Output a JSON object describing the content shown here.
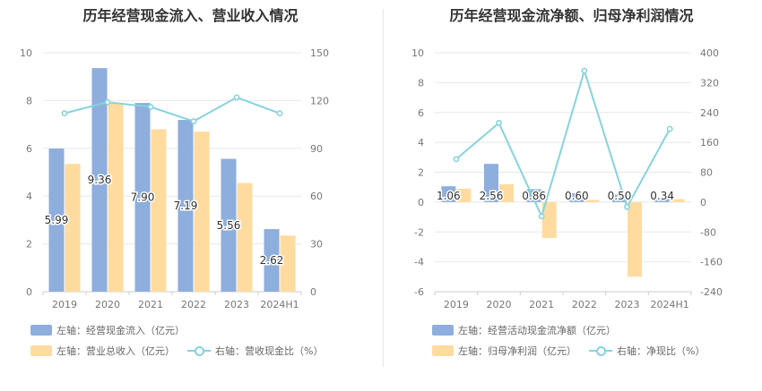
{
  "colors": {
    "bar1": "#8eaedd",
    "bar2": "#ffdb9f",
    "line": "#86d3de",
    "grid": "#e8e8e8",
    "axis_text": "#777777"
  },
  "chart_data": [
    {
      "type": "bar",
      "title": "历年经营现金流入、营业收入情况",
      "categories": [
        "2019",
        "2020",
        "2021",
        "2022",
        "2023",
        "2024H1"
      ],
      "ylim_left": [
        0,
        10
      ],
      "ylim_right": [
        0,
        150
      ],
      "left_ticks": [
        "0",
        "2",
        "4",
        "6",
        "8",
        "10"
      ],
      "right_ticks": [
        "0",
        "30",
        "60",
        "90",
        "120",
        "150"
      ],
      "series": [
        {
          "name": "左轴：经营现金流入（亿元）",
          "kind": "bar",
          "axis": "left",
          "values": [
            5.99,
            9.36,
            7.9,
            7.19,
            5.56,
            2.62
          ],
          "labels": [
            "5.99",
            "9.36",
            "7.90",
            "7.19",
            "5.56",
            "2.62"
          ]
        },
        {
          "name": "左轴：营业总收入（亿元）",
          "kind": "bar",
          "axis": "left",
          "values": [
            5.35,
            7.9,
            6.8,
            6.7,
            4.55,
            2.35
          ]
        },
        {
          "name": "右轴：营收现金比（%）",
          "kind": "line",
          "axis": "right",
          "values": [
            112,
            119,
            116,
            107,
            122,
            112
          ]
        }
      ],
      "grid": true
    },
    {
      "type": "bar",
      "title": "历年经营现金流净额、归母净利润情况",
      "categories": [
        "2019",
        "2020",
        "2021",
        "2022",
        "2023",
        "2024H1"
      ],
      "ylim_left": [
        -6,
        10
      ],
      "ylim_right": [
        -240,
        400
      ],
      "left_ticks": [
        "-6",
        "-4",
        "-2",
        "0",
        "2",
        "4",
        "6",
        "8",
        "10"
      ],
      "right_ticks": [
        "-240",
        "-160",
        "-80",
        "0",
        "80",
        "160",
        "240",
        "320",
        "400"
      ],
      "series": [
        {
          "name": "左轴：经营活动现金流净额（亿元）",
          "kind": "bar",
          "axis": "left",
          "values": [
            1.06,
            2.56,
            0.86,
            0.6,
            0.5,
            0.34
          ],
          "labels": [
            "1.06",
            "2.56",
            "0.86",
            "0.60",
            "0.50",
            "0.34"
          ]
        },
        {
          "name": "左轴：归母净利润（亿元）",
          "kind": "bar",
          "axis": "left",
          "values": [
            0.9,
            1.2,
            -2.4,
            0.15,
            -5.0,
            0.2
          ]
        },
        {
          "name": "右轴：净现比（%）",
          "kind": "line",
          "axis": "right",
          "values": [
            115,
            212,
            -38,
            352,
            -13,
            196
          ]
        }
      ],
      "grid": true
    }
  ]
}
